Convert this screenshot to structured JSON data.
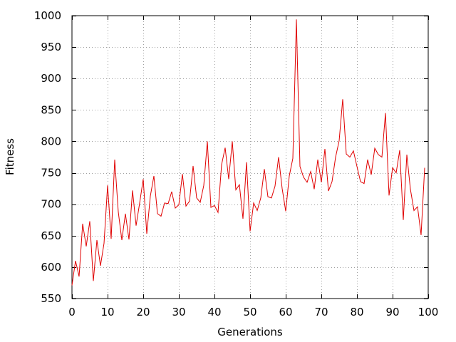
{
  "chart_data": {
    "type": "line",
    "title": "",
    "xlabel": "Generations",
    "ylabel": "Fitness",
    "xlim": [
      0,
      100
    ],
    "ylim": [
      550,
      1000
    ],
    "grid": true,
    "legend": "none",
    "x_ticks": [
      0,
      10,
      20,
      30,
      40,
      50,
      60,
      70,
      80,
      90,
      100
    ],
    "y_ticks": [
      550,
      600,
      650,
      700,
      750,
      800,
      850,
      900,
      950,
      1000
    ],
    "series": [
      {
        "color": "#e00000",
        "x": [
          0,
          1,
          2,
          3,
          4,
          5,
          6,
          7,
          8,
          9,
          10,
          11,
          12,
          13,
          14,
          15,
          16,
          17,
          18,
          19,
          20,
          21,
          22,
          23,
          24,
          25,
          26,
          27,
          28,
          29,
          30,
          31,
          32,
          33,
          34,
          35,
          36,
          37,
          38,
          39,
          40,
          41,
          42,
          43,
          44,
          45,
          46,
          47,
          48,
          49,
          50,
          51,
          52,
          53,
          54,
          55,
          56,
          57,
          58,
          59,
          60,
          61,
          62,
          63,
          64,
          65,
          66,
          67,
          68,
          69,
          70,
          71,
          72,
          73,
          74,
          75,
          76,
          77,
          78,
          79,
          80,
          81,
          82,
          83,
          84,
          85,
          86,
          87,
          88,
          89,
          90,
          91,
          92,
          93,
          94,
          95,
          96,
          97,
          98,
          99,
          100
        ],
        "values": [
          571,
          610,
          585,
          669,
          633,
          673,
          578,
          643,
          602,
          638,
          730,
          645,
          771,
          688,
          643,
          685,
          644,
          722,
          666,
          702,
          740,
          653,
          713,
          745,
          685,
          681,
          702,
          701,
          720,
          694,
          699,
          748,
          697,
          705,
          761,
          710,
          703,
          730,
          800,
          695,
          698,
          687,
          763,
          790,
          740,
          800,
          723,
          731,
          677,
          767,
          657,
          702,
          690,
          710,
          756,
          712,
          710,
          729,
          775,
          725,
          689,
          745,
          773,
          994,
          760,
          743,
          735,
          752,
          724,
          771,
          735,
          788,
          721,
          736,
          775,
          801,
          867,
          780,
          775,
          785,
          760,
          736,
          733,
          771,
          747,
          789,
          779,
          775,
          845,
          714,
          758,
          750,
          786,
          675,
          779,
          724,
          690,
          696,
          651,
          758,
          null
        ]
      }
    ]
  }
}
